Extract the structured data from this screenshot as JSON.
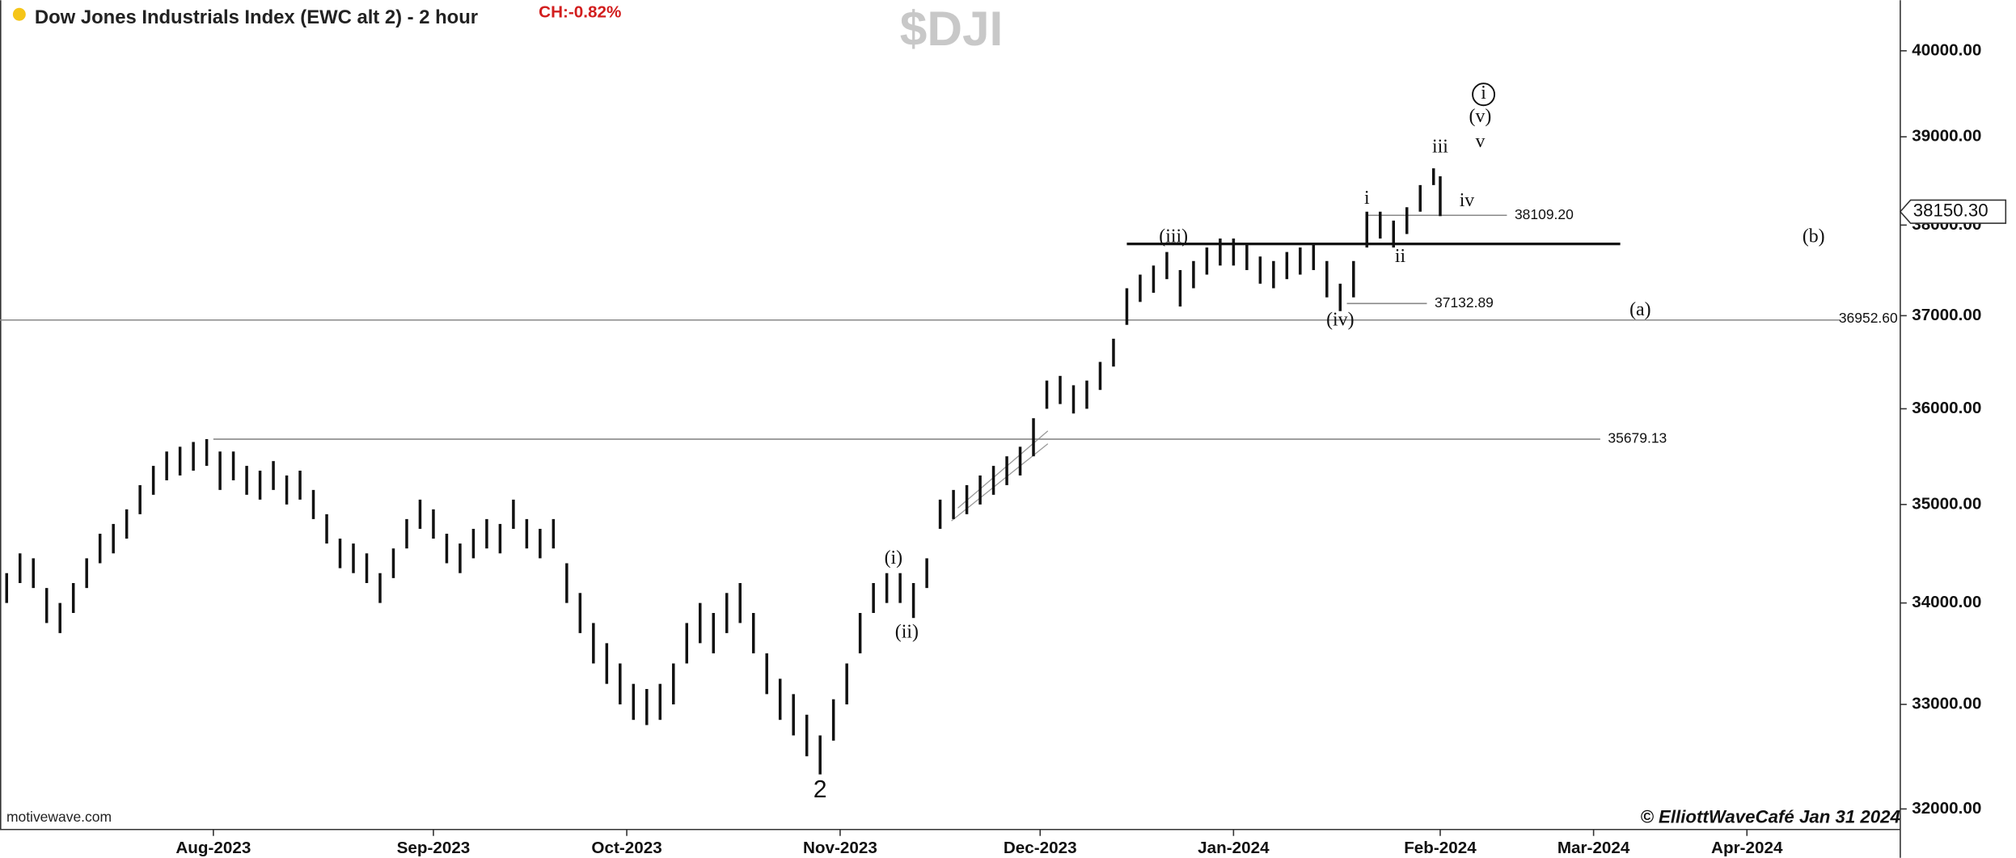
{
  "chart_data": {
    "type": "range_bar",
    "title": "Dow Jones Industrials Index (EWC alt 2) - 2 hour",
    "change": "CH:-0.82%",
    "symbol": "$DJI",
    "source": "motivewave.com",
    "credit": "© ElliottWaveCafé Jan 31  2024",
    "color": "#111111",
    "log": true,
    "xlim": [
      -32,
      253
    ],
    "ylim": [
      31807,
      40600
    ],
    "xticks": [
      {
        "value": 0,
        "label": "Aug-2023"
      },
      {
        "value": 33,
        "label": "Sep-2023"
      },
      {
        "value": 62,
        "label": "Oct-2023"
      },
      {
        "value": 94,
        "label": "Nov-2023"
      },
      {
        "value": 124,
        "label": "Dec-2023"
      },
      {
        "value": 153,
        "label": "Jan-2024"
      },
      {
        "value": 184,
        "label": "Feb-2024"
      },
      {
        "value": 207,
        "label": "Mar-2024"
      },
      {
        "value": 230,
        "label": "Apr-2024"
      }
    ],
    "yticks": [
      {
        "value": 32000,
        "label": "32000.00"
      },
      {
        "value": 33000,
        "label": "33000.00"
      },
      {
        "value": 34000,
        "label": "34000.00"
      },
      {
        "value": 35000,
        "label": "35000.00"
      },
      {
        "value": 36000,
        "label": "36000.00"
      },
      {
        "value": 37000,
        "label": "37000.00"
      },
      {
        "value": 38000,
        "label": "38000.00"
      },
      {
        "value": 39000,
        "label": "39000.00"
      },
      {
        "value": 40000,
        "label": "40000.00"
      }
    ],
    "x": [
      -31,
      -29,
      -27,
      -25,
      -23,
      -21,
      -19,
      -17,
      -15,
      -13,
      -11,
      -9,
      -7,
      -5,
      -3,
      -1,
      1,
      3,
      5,
      7,
      9,
      11,
      13,
      15,
      17,
      19,
      21,
      23,
      25,
      27,
      29,
      31,
      33,
      35,
      37,
      39,
      41,
      43,
      45,
      47,
      49,
      51,
      53,
      55,
      57,
      59,
      61,
      63,
      65,
      67,
      69,
      71,
      73,
      75,
      77,
      79,
      81,
      83,
      85,
      87,
      89,
      91,
      93,
      95,
      97,
      99,
      101,
      103,
      105,
      107,
      109,
      111,
      113,
      115,
      117,
      119,
      121,
      123,
      125,
      127,
      129,
      131,
      133,
      135,
      137,
      139,
      141,
      143,
      145,
      147,
      149,
      151,
      153,
      155,
      157,
      159,
      161,
      163,
      165,
      167,
      169,
      171,
      173,
      175,
      177,
      179,
      181,
      183,
      184
    ],
    "high": [
      34300,
      34500,
      34450,
      34150,
      34000,
      34200,
      34450,
      34700,
      34800,
      34950,
      35200,
      35400,
      35550,
      35600,
      35650,
      35680,
      35550,
      35550,
      35400,
      35350,
      35450,
      35300,
      35350,
      35150,
      34900,
      34650,
      34600,
      34500,
      34300,
      34550,
      34850,
      35050,
      34950,
      34700,
      34600,
      34750,
      34850,
      34800,
      35050,
      34850,
      34750,
      34850,
      34400,
      34100,
      33800,
      33600,
      33400,
      33200,
      33150,
      33200,
      33400,
      33800,
      34000,
      33900,
      34100,
      34200,
      33900,
      33500,
      33250,
      33100,
      32900,
      32700,
      33050,
      33400,
      33900,
      34200,
      34300,
      34300,
      34200,
      34450,
      35050,
      35150,
      35200,
      35300,
      35400,
      35500,
      35600,
      35900,
      36300,
      36350,
      36250,
      36300,
      36500,
      36750,
      37300,
      37450,
      37550,
      37700,
      37500,
      37600,
      37750,
      37850,
      37850,
      37800,
      37650,
      37600,
      37700,
      37750,
      37800,
      37600,
      37350,
      37600,
      38150,
      38150,
      38050,
      38200,
      38450,
      38640,
      38550
    ],
    "low": [
      34000,
      34200,
      34150,
      33800,
      33700,
      33900,
      34150,
      34400,
      34500,
      34650,
      34900,
      35100,
      35250,
      35300,
      35350,
      35400,
      35150,
      35250,
      35100,
      35050,
      35150,
      35000,
      35050,
      34850,
      34600,
      34350,
      34300,
      34200,
      34000,
      34250,
      34550,
      34750,
      34650,
      34400,
      34300,
      34450,
      34550,
      34500,
      34750,
      34550,
      34450,
      34550,
      34000,
      33700,
      33400,
      33200,
      33000,
      32850,
      32800,
      32850,
      33000,
      33400,
      33600,
      33500,
      33700,
      33800,
      33500,
      33100,
      32850,
      32700,
      32500,
      32327,
      32650,
      33000,
      33500,
      33900,
      34000,
      34000,
      33850,
      34150,
      34750,
      34850,
      34900,
      35000,
      35100,
      35200,
      35300,
      35500,
      36000,
      36050,
      35950,
      36000,
      36200,
      36450,
      36900,
      37150,
      37250,
      37400,
      37100,
      37300,
      37450,
      37550,
      37550,
      37500,
      37350,
      37300,
      37400,
      37450,
      37500,
      37200,
      37050,
      37200,
      37750,
      37850,
      37750,
      37900,
      38150,
      38450,
      38100
    ],
    "last": {
      "value": 38150.3,
      "label": "38150.30"
    },
    "levels": [
      {
        "value": 36952.6,
        "label": "36952.60",
        "x_range": [
          -32,
          244
        ],
        "width": 1
      },
      {
        "value": 35679.13,
        "label": "35679.13",
        "x_range": [
          0,
          208
        ],
        "width": 1
      },
      {
        "value": 37132.89,
        "label": "37132.89",
        "x_range": [
          170,
          182
        ],
        "width": 1
      },
      {
        "value": 38109.2,
        "label": "38109.20",
        "x_range": [
          173,
          194
        ],
        "width": 1
      },
      {
        "value": 37790,
        "x_range": [
          137,
          211
        ],
        "width": 2
      }
    ],
    "annotations": [
      {
        "text": "2",
        "x": 91,
        "y": 32170
      },
      {
        "text": "(i)",
        "x": 102,
        "y": 34440
      },
      {
        "text": "(ii)",
        "x": 104,
        "y": 33700
      },
      {
        "text": "(iii)",
        "x": 144,
        "y": 37860
      },
      {
        "text": "(iv)",
        "x": 169,
        "y": 36940
      },
      {
        "text": "i",
        "x": 173,
        "y": 38290
      },
      {
        "text": "ii",
        "x": 178,
        "y": 37640
      },
      {
        "text": "iii",
        "x": 184,
        "y": 38870
      },
      {
        "text": "iv",
        "x": 188,
        "y": 38260
      },
      {
        "text": "v",
        "x": 190,
        "y": 38930
      },
      {
        "text": "(v)",
        "x": 190,
        "y": 39220
      },
      {
        "text": "i",
        "x": 190.5,
        "y": 39490,
        "circled": true
      },
      {
        "text": "(a)",
        "x": 214,
        "y": 37050
      },
      {
        "text": "(b)",
        "x": 240,
        "y": 37860
      }
    ]
  }
}
